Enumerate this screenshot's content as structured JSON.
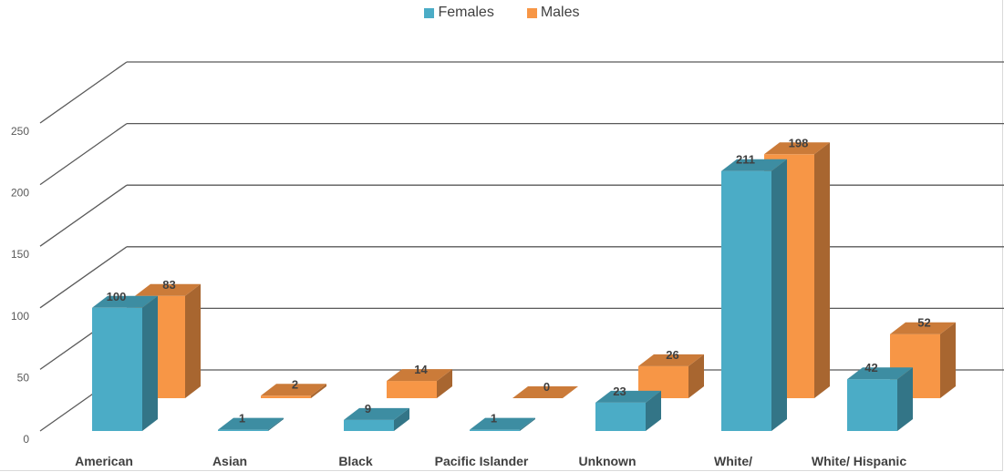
{
  "chart_data": {
    "type": "bar",
    "title": "",
    "xlabel": "",
    "ylabel": "",
    "categories": [
      "American",
      "Asian",
      "Black",
      "Pacific Islander",
      "Unknown",
      "White/",
      "White/ Hispanic"
    ],
    "series": [
      {
        "name": "Females",
        "values": [
          100,
          1,
          9,
          1,
          23,
          211,
          42
        ],
        "color": "#4BACC6"
      },
      {
        "name": "Males",
        "values": [
          83,
          2,
          14,
          0,
          26,
          198,
          52
        ],
        "color": "#F79646"
      }
    ],
    "yticks": [
      0,
      50,
      100,
      150,
      200,
      250
    ],
    "ylim": [
      0,
      250
    ],
    "grid": true,
    "legend": "top-center",
    "style": "3d-clustered-column"
  }
}
